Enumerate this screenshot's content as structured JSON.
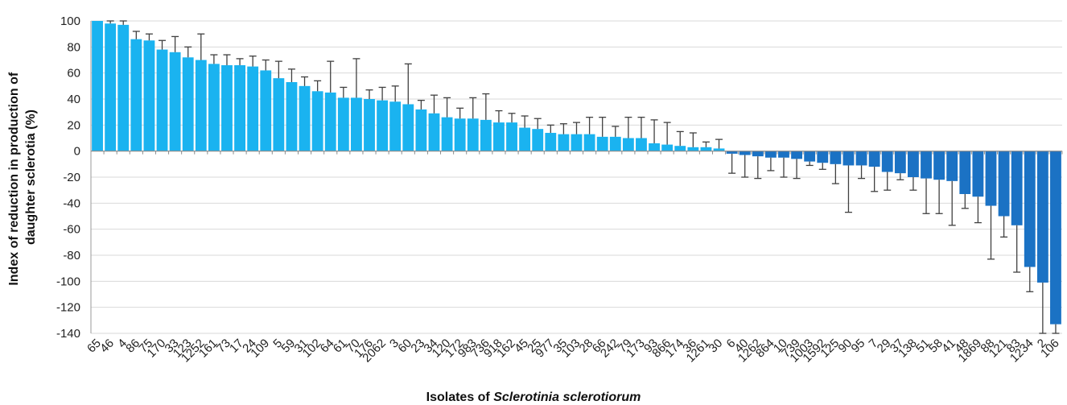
{
  "chart_data": {
    "type": "bar",
    "title": "",
    "ylabel_lines": [
      "Index of  reduction in production of",
      "daughter sclerotia  (%)"
    ],
    "xlabel_prefix": "Isolates of ",
    "xlabel_italic": "Sclerotinia sclerotiorum",
    "ylim": [
      -140,
      100
    ],
    "yticks": [
      100,
      80,
      60,
      40,
      20,
      0,
      -20,
      -40,
      -60,
      -80,
      -100,
      -120,
      -140
    ],
    "grid": true,
    "legend": "none",
    "colors": {
      "positive": "#1ab3f0",
      "negative": "#1b72c4",
      "error_bar": "#404040",
      "grid": "#d9d9d9"
    },
    "categories": [
      "65",
      "46",
      "4",
      "86",
      "75",
      "170",
      "33",
      "123",
      "1252",
      "161",
      "73",
      "17",
      "24",
      "109",
      "5",
      "59",
      "31",
      "102",
      "64",
      "61",
      "70",
      "176",
      "2062",
      "3",
      "60",
      "23",
      "34",
      "120",
      "172",
      "983",
      "736",
      "918",
      "162",
      "45",
      "25",
      "977",
      "35",
      "103",
      "28",
      "66",
      "242",
      "79",
      "173",
      "93",
      "866",
      "174",
      "36",
      "1261",
      "30",
      "6",
      "40",
      "1262",
      "864",
      "10",
      "739",
      "1003",
      "1592",
      "125",
      "90",
      "95",
      "7",
      "29",
      "37",
      "138",
      "51",
      "58",
      "41",
      "48",
      "1869",
      "88",
      "121",
      "83",
      "1234",
      "2",
      "106"
    ],
    "values": [
      100,
      98,
      97,
      86,
      85,
      78,
      76,
      72,
      70,
      67,
      66,
      66,
      65,
      62,
      56,
      53,
      50,
      46,
      45,
      41,
      41,
      40,
      39,
      38,
      36,
      32,
      29,
      26,
      25,
      25,
      24,
      22,
      22,
      18,
      17,
      14,
      13,
      13,
      13,
      11,
      11,
      10,
      10,
      6,
      5,
      4,
      3,
      3,
      2,
      -2,
      -3,
      -4,
      -5,
      -5,
      -6,
      -8,
      -9,
      -10,
      -11,
      -11,
      -12,
      -16,
      -17,
      -20,
      -21,
      -22,
      -23,
      -33,
      -35,
      -42,
      -50,
      -57,
      -89,
      -101,
      -133
    ],
    "errors": [
      0,
      2,
      3,
      6,
      5,
      7,
      12,
      8,
      20,
      7,
      8,
      5,
      8,
      8,
      13,
      10,
      7,
      8,
      24,
      8,
      30,
      7,
      10,
      12,
      31,
      7,
      14,
      15,
      8,
      16,
      20,
      9,
      7,
      9,
      8,
      6,
      8,
      9,
      13,
      15,
      8,
      16,
      16,
      18,
      17,
      11,
      11,
      4,
      7,
      15,
      17,
      17,
      10,
      15,
      15,
      3,
      5,
      15,
      36,
      10,
      19,
      14,
      5,
      10,
      27,
      26,
      34,
      11,
      20,
      41,
      16,
      36,
      19,
      39,
      44
    ]
  }
}
